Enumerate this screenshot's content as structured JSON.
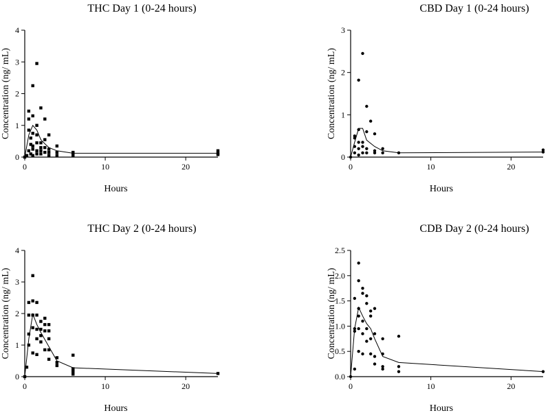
{
  "chart_data": [
    {
      "type": "scatter",
      "title": "THC Day 1 (0-24 hours)",
      "xlabel": "Hours",
      "ylabel": "Concentration (ng/ mL)",
      "xlim": [
        0,
        24
      ],
      "ylim": [
        0,
        4
      ],
      "xticks": [
        "0",
        "10",
        "20"
      ],
      "xtick_values": [
        0,
        10,
        20
      ],
      "yticks": [
        "0",
        "1",
        "2",
        "3",
        "4"
      ],
      "ytick_values": [
        0,
        1,
        2,
        3,
        4
      ],
      "marker": "square",
      "points": [
        [
          0,
          0
        ],
        [
          0.25,
          0.05
        ],
        [
          0.5,
          0.2
        ],
        [
          0.5,
          0.85
        ],
        [
          0.5,
          1.2
        ],
        [
          0.5,
          1.45
        ],
        [
          0.75,
          0.1
        ],
        [
          0.75,
          0.4
        ],
        [
          0.75,
          0.6
        ],
        [
          1,
          0.05
        ],
        [
          1,
          0.25
        ],
        [
          1,
          0.35
        ],
        [
          1,
          0.75
        ],
        [
          1,
          1.3
        ],
        [
          1,
          2.25
        ],
        [
          1.5,
          0.1
        ],
        [
          1.5,
          0.2
        ],
        [
          1.5,
          0.45
        ],
        [
          1.5,
          0.7
        ],
        [
          1.5,
          1.0
        ],
        [
          1.5,
          2.95
        ],
        [
          2,
          0.1
        ],
        [
          2,
          0.2
        ],
        [
          2,
          0.3
        ],
        [
          2,
          0.45
        ],
        [
          2,
          1.55
        ],
        [
          2.5,
          0.15
        ],
        [
          2.5,
          0.3
        ],
        [
          2.5,
          0.55
        ],
        [
          2.5,
          1.2
        ],
        [
          3,
          0.05
        ],
        [
          3,
          0.15
        ],
        [
          3,
          0.25
        ],
        [
          3,
          0.7
        ],
        [
          4,
          0.05
        ],
        [
          4,
          0.15
        ],
        [
          4,
          0.35
        ],
        [
          6,
          0.05
        ],
        [
          6,
          0.12
        ],
        [
          6,
          0.15
        ],
        [
          24,
          0.08
        ],
        [
          24,
          0.12
        ],
        [
          24,
          0.2
        ]
      ],
      "mean_line": {
        "x": [
          0,
          0.5,
          1,
          1.5,
          2,
          2.5,
          3,
          4,
          6,
          24
        ],
        "y": [
          0,
          0.7,
          1.0,
          0.85,
          0.55,
          0.42,
          0.3,
          0.2,
          0.12,
          0.12
        ]
      }
    },
    {
      "type": "scatter",
      "title": "CBD Day 1 (0-24 hours)",
      "xlabel": "Hours",
      "ylabel": "Concentration (ng/ mL)",
      "xlim": [
        0,
        24
      ],
      "ylim": [
        0,
        3
      ],
      "xticks": [
        "0",
        "10",
        "20"
      ],
      "xtick_values": [
        0,
        10,
        20
      ],
      "yticks": [
        "0",
        "1",
        "2",
        "3"
      ],
      "ytick_values": [
        0,
        1,
        2,
        3
      ],
      "marker": "circle",
      "points": [
        [
          0,
          0
        ],
        [
          0.5,
          0.1
        ],
        [
          0.5,
          0.25
        ],
        [
          0.5,
          0.45
        ],
        [
          0.5,
          0.5
        ],
        [
          1,
          0.05
        ],
        [
          1,
          0.2
        ],
        [
          1,
          0.35
        ],
        [
          1,
          0.65
        ],
        [
          1,
          1.82
        ],
        [
          1.5,
          0.1
        ],
        [
          1.5,
          0.25
        ],
        [
          1.5,
          0.35
        ],
        [
          1.5,
          2.45
        ],
        [
          2,
          0.1
        ],
        [
          2,
          0.2
        ],
        [
          2,
          0.6
        ],
        [
          2,
          1.2
        ],
        [
          2.5,
          0.85
        ],
        [
          3,
          0.1
        ],
        [
          3,
          0.15
        ],
        [
          3,
          0.55
        ],
        [
          4,
          0.1
        ],
        [
          4,
          0.2
        ],
        [
          6,
          0.1
        ],
        [
          24,
          0.12
        ],
        [
          24,
          0.17
        ]
      ],
      "mean_line": {
        "x": [
          0,
          0.5,
          1,
          1.5,
          2,
          3,
          4,
          6,
          24
        ],
        "y": [
          0,
          0.35,
          0.68,
          0.68,
          0.4,
          0.25,
          0.15,
          0.1,
          0.12
        ]
      }
    },
    {
      "type": "scatter",
      "title": "THC Day 2 (0-24 hours)",
      "xlabel": "Hours",
      "ylabel": "Concentration (ng/ mL)",
      "xlim": [
        0,
        24
      ],
      "ylim": [
        0,
        4
      ],
      "xticks": [
        "0",
        "10",
        "20"
      ],
      "xtick_values": [
        0,
        10,
        20
      ],
      "yticks": [
        "0",
        "1",
        "2",
        "3",
        "4"
      ],
      "ytick_values": [
        0,
        1,
        2,
        3,
        4
      ],
      "marker": "square",
      "points": [
        [
          0,
          0
        ],
        [
          0.25,
          0.3
        ],
        [
          0.5,
          1.0
        ],
        [
          0.5,
          1.35
        ],
        [
          0.5,
          1.95
        ],
        [
          0.5,
          2.35
        ],
        [
          1,
          0.75
        ],
        [
          1,
          1.55
        ],
        [
          1,
          1.95
        ],
        [
          1,
          2.4
        ],
        [
          1,
          3.2
        ],
        [
          1.5,
          0.7
        ],
        [
          1.5,
          1.2
        ],
        [
          1.5,
          1.5
        ],
        [
          1.5,
          1.95
        ],
        [
          1.5,
          2.35
        ],
        [
          2,
          1.1
        ],
        [
          2,
          1.3
        ],
        [
          2,
          1.5
        ],
        [
          2,
          1.75
        ],
        [
          2.5,
          0.85
        ],
        [
          2.5,
          1.45
        ],
        [
          2.5,
          1.65
        ],
        [
          2.5,
          1.85
        ],
        [
          3,
          0.55
        ],
        [
          3,
          0.85
        ],
        [
          3,
          1.2
        ],
        [
          3,
          1.45
        ],
        [
          3,
          1.65
        ],
        [
          4,
          0.35
        ],
        [
          4,
          0.45
        ],
        [
          4,
          0.6
        ],
        [
          6,
          0.08
        ],
        [
          6,
          0.15
        ],
        [
          6,
          0.2
        ],
        [
          6,
          0.25
        ],
        [
          6,
          0.68
        ],
        [
          24,
          0.1
        ]
      ],
      "mean_line": {
        "x": [
          0,
          0.5,
          1,
          1.5,
          2,
          3,
          4,
          6,
          24
        ],
        "y": [
          0,
          1.2,
          1.98,
          1.65,
          1.4,
          0.95,
          0.5,
          0.28,
          0.1
        ]
      }
    },
    {
      "type": "scatter",
      "title": "CDB Day 2 (0-24 hours)",
      "xlabel": "Hours",
      "ylabel": "Concentration (ng/ mL)",
      "xlim": [
        0,
        24
      ],
      "ylim": [
        0,
        2.5
      ],
      "xticks": [
        "0",
        "10",
        "20"
      ],
      "xtick_values": [
        0,
        10,
        20
      ],
      "yticks": [
        "0.0",
        "0.5",
        "1.0",
        "1.5",
        "2.0",
        "2.5"
      ],
      "ytick_values": [
        0,
        0.5,
        1,
        1.5,
        2,
        2.5
      ],
      "marker": "circle",
      "points": [
        [
          0,
          0
        ],
        [
          0.5,
          0.15
        ],
        [
          0.5,
          0.9
        ],
        [
          0.5,
          0.95
        ],
        [
          0.5,
          1.55
        ],
        [
          1,
          0.5
        ],
        [
          1,
          0.95
        ],
        [
          1,
          1.2
        ],
        [
          1,
          1.35
        ],
        [
          1,
          1.9
        ],
        [
          1,
          2.25
        ],
        [
          1.5,
          0.45
        ],
        [
          1.5,
          0.85
        ],
        [
          1.5,
          1.1
        ],
        [
          1.5,
          1.65
        ],
        [
          1.5,
          1.75
        ],
        [
          2,
          0.7
        ],
        [
          2,
          0.95
        ],
        [
          2,
          1.45
        ],
        [
          2,
          1.6
        ],
        [
          2.5,
          0.45
        ],
        [
          2.5,
          0.75
        ],
        [
          2.5,
          1.2
        ],
        [
          2.5,
          1.3
        ],
        [
          3,
          0.25
        ],
        [
          3,
          0.4
        ],
        [
          3,
          0.85
        ],
        [
          3,
          1.35
        ],
        [
          4,
          0.15
        ],
        [
          4,
          0.2
        ],
        [
          4,
          0.45
        ],
        [
          4,
          0.75
        ],
        [
          6,
          0.1
        ],
        [
          6,
          0.2
        ],
        [
          6,
          0.8
        ],
        [
          24,
          0.1
        ]
      ],
      "mean_line": {
        "x": [
          0,
          0.5,
          1,
          1.5,
          2,
          2.5,
          3,
          4,
          6,
          24
        ],
        "y": [
          0,
          0.95,
          1.37,
          1.2,
          1.05,
          0.95,
          0.75,
          0.4,
          0.28,
          0.1
        ]
      }
    }
  ]
}
